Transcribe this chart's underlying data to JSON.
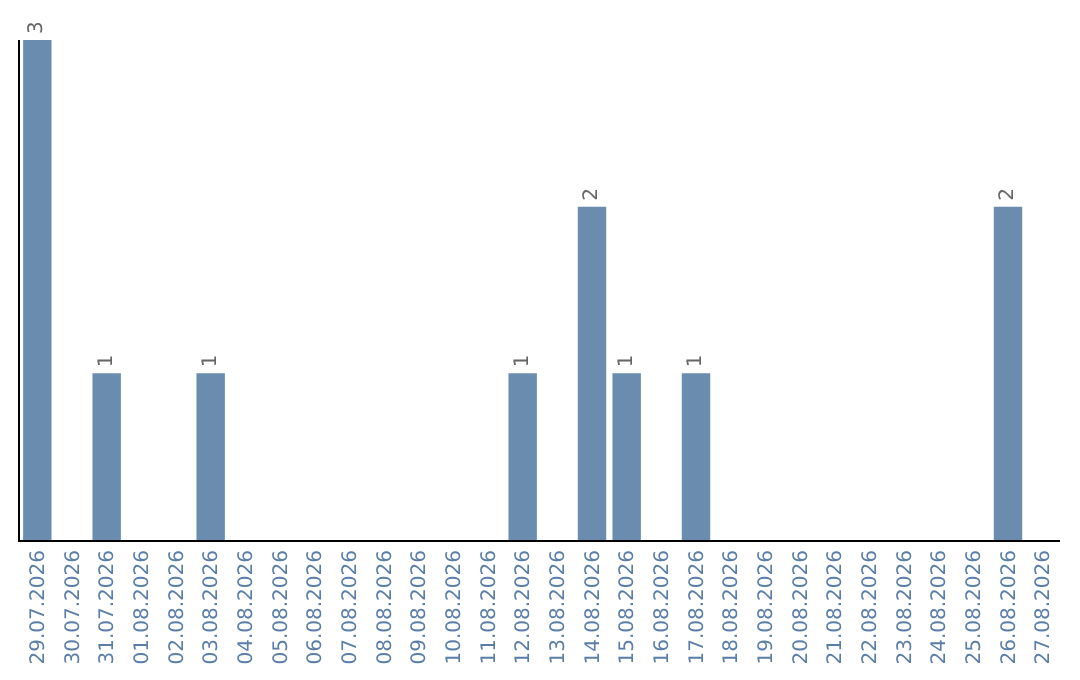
{
  "chart_data": {
    "type": "bar",
    "categories": [
      "29.07.2026",
      "30.07.2026",
      "31.07.2026",
      "01.08.2026",
      "02.08.2026",
      "03.08.2026",
      "04.08.2026",
      "05.08.2026",
      "06.08.2026",
      "07.08.2026",
      "08.08.2026",
      "09.08.2026",
      "10.08.2026",
      "11.08.2026",
      "12.08.2026",
      "13.08.2026",
      "14.08.2026",
      "15.08.2026",
      "16.08.2026",
      "17.08.2026",
      "18.08.2026",
      "19.08.2026",
      "20.08.2026",
      "21.08.2026",
      "22.08.2026",
      "23.08.2026",
      "24.08.2026",
      "25.08.2026",
      "26.08.2026",
      "27.08.2026"
    ],
    "values": [
      3,
      0,
      1,
      0,
      0,
      1,
      0,
      0,
      0,
      0,
      0,
      0,
      0,
      0,
      1,
      0,
      2,
      1,
      0,
      1,
      0,
      0,
      0,
      0,
      0,
      0,
      0,
      0,
      2,
      0
    ],
    "value_labels": [
      "3",
      null,
      "1",
      null,
      null,
      "1",
      null,
      null,
      null,
      null,
      null,
      null,
      null,
      null,
      "1",
      null,
      "2",
      "1",
      null,
      "1",
      null,
      null,
      null,
      null,
      null,
      null,
      null,
      null,
      "2",
      null
    ],
    "color": "#6a8caf",
    "ylim": [
      0,
      3
    ],
    "tick_labels": "x",
    "grid": false,
    "legend": false
  }
}
